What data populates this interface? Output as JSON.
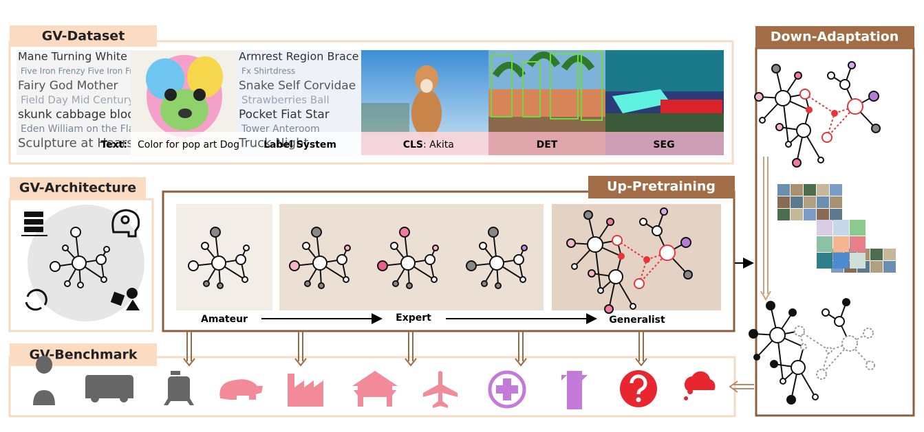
{
  "dataset": {
    "title": "GV-Dataset",
    "captions": [
      {
        "label": "Text:",
        "text": "Color for pop art Dog"
      },
      {
        "label": "Label System"
      },
      {
        "label": "CLS",
        "text": ": Akita"
      },
      {
        "label": "DET"
      },
      {
        "label": "SEG"
      }
    ],
    "word_clouds": [
      [
        "Mane Turning White",
        "Five Iron Frenzy Five Iron Frenzy",
        "Fairy God Mother",
        "Field Day Mid Century Ne",
        "skunk cabbage bloom",
        "Eden William on the Flagpole",
        "Sculpture at Hearst"
      ],
      [
        "Armrest Region Brace",
        "Fx Shirtdress",
        "Snake Self Corvidae",
        "Strawberries Ball",
        "Pocket Fiat Star",
        "Tower Anteroom",
        "Truck Night"
      ]
    ]
  },
  "architecture": {
    "title": "GV-Architecture"
  },
  "pretraining": {
    "title": "Up-Pretraining",
    "stages": [
      "Amateur",
      "Expert",
      "Generalist"
    ]
  },
  "benchmark": {
    "title": "GV-Benchmark"
  },
  "adaptation": {
    "title": "Down-Adaptation"
  }
}
